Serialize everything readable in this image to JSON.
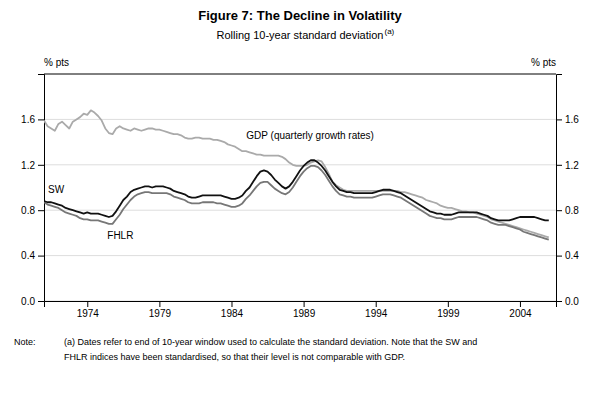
{
  "chart_data": {
    "type": "line",
    "title": "Figure 7: The Decline in Volatility",
    "subtitle": "Rolling 10-year standard deviation",
    "ylabel": "% pts",
    "y2label": "% pts",
    "annotations": [
      "(a)",
      "Note:",
      "(a) Dates refer to end of 10-year window used to calculate the standard deviation. Note that the SW and",
      "FHLR indices have been standardised, so that their level is not comparable with GDP."
    ],
    "xlim": [
      1971.0,
      2006.5
    ],
    "xticks": [
      1974,
      1979,
      1984,
      1989,
      1994,
      1999,
      2004
    ],
    "ylim": [
      0.0,
      2.0
    ],
    "yticks": [
      {
        "value": 0.0,
        "label": "0.0"
      },
      0.4,
      0.8,
      1.2,
      1.6
    ],
    "y2lim": [
      0.0,
      2.0
    ],
    "y2ticks": [
      {
        "value": 0.0,
        "label": "0.0"
      },
      0.4,
      0.8,
      1.2,
      1.6
    ],
    "grid": true,
    "x": [
      1971.0,
      1971.25,
      1971.5,
      1971.75,
      1972.0,
      1972.25,
      1972.5,
      1972.75,
      1973.0,
      1973.25,
      1973.5,
      1973.75,
      1974.0,
      1974.25,
      1974.5,
      1974.75,
      1975.0,
      1975.25,
      1975.5,
      1975.75,
      1976.0,
      1976.25,
      1976.5,
      1976.75,
      1977.0,
      1977.25,
      1977.5,
      1977.75,
      1978.0,
      1978.25,
      1978.5,
      1978.75,
      1979.0,
      1979.25,
      1979.5,
      1979.75,
      1980.0,
      1980.25,
      1980.5,
      1980.75,
      1981.0,
      1981.25,
      1981.5,
      1981.75,
      1982.0,
      1982.25,
      1982.5,
      1982.75,
      1983.0,
      1983.25,
      1983.5,
      1983.75,
      1984.0,
      1984.25,
      1984.5,
      1984.75,
      1985.0,
      1985.25,
      1985.5,
      1985.75,
      1986.0,
      1986.25,
      1986.5,
      1986.75,
      1987.0,
      1987.25,
      1987.5,
      1987.75,
      1988.0,
      1988.25,
      1988.5,
      1988.75,
      1989.0,
      1989.25,
      1989.5,
      1989.75,
      1990.0,
      1990.25,
      1990.5,
      1990.75,
      1991.0,
      1991.25,
      1991.5,
      1991.75,
      1992.0,
      1992.25,
      1992.5,
      1992.75,
      1993.0,
      1993.25,
      1993.5,
      1993.75,
      1994.0,
      1994.25,
      1994.5,
      1994.75,
      1995.0,
      1995.25,
      1995.5,
      1995.75,
      1996.0,
      1996.25,
      1996.5,
      1996.75,
      1997.0,
      1997.25,
      1997.5,
      1997.75,
      1998.0,
      1998.25,
      1998.5,
      1998.75,
      1999.0,
      1999.25,
      1999.5,
      1999.75,
      2000.0,
      2000.25,
      2000.5,
      2000.75,
      2001.0,
      2001.25,
      2001.5,
      2001.75,
      2002.0,
      2002.25,
      2002.5,
      2002.75,
      2003.0,
      2003.25,
      2003.5,
      2003.75,
      2004.0,
      2004.25,
      2004.5,
      2004.75,
      2005.0,
      2005.25,
      2005.5,
      2005.75,
      2006.0
    ],
    "series": [
      {
        "name": "GDP (quarterly growth rates)",
        "color": "#aaaaaa",
        "values": [
          1.59,
          1.54,
          1.52,
          1.5,
          1.56,
          1.58,
          1.55,
          1.52,
          1.58,
          1.6,
          1.62,
          1.65,
          1.64,
          1.68,
          1.66,
          1.63,
          1.59,
          1.52,
          1.48,
          1.47,
          1.52,
          1.54,
          1.52,
          1.51,
          1.5,
          1.52,
          1.51,
          1.5,
          1.51,
          1.52,
          1.52,
          1.51,
          1.51,
          1.5,
          1.49,
          1.48,
          1.47,
          1.47,
          1.46,
          1.44,
          1.43,
          1.43,
          1.44,
          1.44,
          1.43,
          1.43,
          1.43,
          1.42,
          1.42,
          1.41,
          1.4,
          1.38,
          1.37,
          1.36,
          1.34,
          1.32,
          1.32,
          1.31,
          1.3,
          1.29,
          1.29,
          1.28,
          1.28,
          1.28,
          1.28,
          1.28,
          1.27,
          1.25,
          1.22,
          1.2,
          1.19,
          1.19,
          1.19,
          1.2,
          1.22,
          1.23,
          1.24,
          1.23,
          1.18,
          1.12,
          1.05,
          1.02,
          1.0,
          0.98,
          0.97,
          0.97,
          0.97,
          0.97,
          0.97,
          0.97,
          0.97,
          0.97,
          0.97,
          0.97,
          0.97,
          0.97,
          0.97,
          0.97,
          0.97,
          0.96,
          0.96,
          0.95,
          0.94,
          0.93,
          0.92,
          0.91,
          0.89,
          0.88,
          0.87,
          0.86,
          0.84,
          0.83,
          0.82,
          0.82,
          0.81,
          0.8,
          0.79,
          0.79,
          0.78,
          0.78,
          0.77,
          0.76,
          0.75,
          0.74,
          0.72,
          0.71,
          0.7,
          0.69,
          0.68,
          0.67,
          0.66,
          0.65,
          0.64,
          0.63,
          0.62,
          0.61,
          0.6,
          0.59,
          0.58,
          0.57,
          0.56
        ]
      },
      {
        "name": "FHLR",
        "color": "#777777",
        "values": [
          0.87,
          0.85,
          0.84,
          0.83,
          0.82,
          0.8,
          0.78,
          0.77,
          0.76,
          0.75,
          0.73,
          0.72,
          0.72,
          0.71,
          0.71,
          0.71,
          0.7,
          0.69,
          0.68,
          0.68,
          0.72,
          0.76,
          0.81,
          0.85,
          0.89,
          0.92,
          0.94,
          0.95,
          0.96,
          0.96,
          0.95,
          0.95,
          0.95,
          0.95,
          0.95,
          0.94,
          0.92,
          0.91,
          0.9,
          0.89,
          0.87,
          0.86,
          0.86,
          0.86,
          0.87,
          0.87,
          0.87,
          0.87,
          0.86,
          0.86,
          0.85,
          0.84,
          0.83,
          0.83,
          0.84,
          0.86,
          0.9,
          0.93,
          0.97,
          1.01,
          1.04,
          1.05,
          1.05,
          1.02,
          0.99,
          0.97,
          0.95,
          0.94,
          0.96,
          1.0,
          1.05,
          1.1,
          1.14,
          1.17,
          1.19,
          1.19,
          1.18,
          1.15,
          1.11,
          1.06,
          1.01,
          0.97,
          0.94,
          0.93,
          0.92,
          0.92,
          0.91,
          0.91,
          0.91,
          0.91,
          0.91,
          0.91,
          0.92,
          0.93,
          0.94,
          0.94,
          0.94,
          0.93,
          0.92,
          0.91,
          0.89,
          0.87,
          0.85,
          0.83,
          0.81,
          0.79,
          0.77,
          0.75,
          0.74,
          0.73,
          0.73,
          0.72,
          0.72,
          0.72,
          0.73,
          0.74,
          0.74,
          0.74,
          0.74,
          0.74,
          0.74,
          0.73,
          0.72,
          0.71,
          0.69,
          0.68,
          0.67,
          0.67,
          0.67,
          0.66,
          0.65,
          0.64,
          0.63,
          0.61,
          0.6,
          0.59,
          0.58,
          0.57,
          0.56,
          0.55,
          0.54
        ]
      },
      {
        "name": "SW",
        "color": "#111111",
        "values": [
          0.88,
          0.87,
          0.87,
          0.86,
          0.85,
          0.84,
          0.82,
          0.81,
          0.8,
          0.79,
          0.78,
          0.77,
          0.78,
          0.77,
          0.77,
          0.77,
          0.76,
          0.75,
          0.74,
          0.75,
          0.79,
          0.84,
          0.89,
          0.92,
          0.96,
          0.98,
          0.99,
          1.0,
          1.01,
          1.01,
          1.0,
          1.01,
          1.01,
          1.01,
          1.0,
          0.99,
          0.97,
          0.96,
          0.95,
          0.94,
          0.92,
          0.91,
          0.91,
          0.92,
          0.93,
          0.93,
          0.93,
          0.93,
          0.93,
          0.93,
          0.92,
          0.91,
          0.9,
          0.9,
          0.91,
          0.93,
          0.97,
          1.0,
          1.05,
          1.1,
          1.14,
          1.15,
          1.14,
          1.11,
          1.07,
          1.04,
          1.01,
          0.99,
          1.01,
          1.05,
          1.1,
          1.15,
          1.19,
          1.22,
          1.24,
          1.24,
          1.22,
          1.19,
          1.15,
          1.1,
          1.05,
          1.01,
          0.98,
          0.97,
          0.96,
          0.96,
          0.95,
          0.95,
          0.95,
          0.95,
          0.95,
          0.95,
          0.96,
          0.97,
          0.98,
          0.98,
          0.98,
          0.97,
          0.96,
          0.95,
          0.93,
          0.91,
          0.89,
          0.87,
          0.85,
          0.83,
          0.81,
          0.79,
          0.78,
          0.77,
          0.77,
          0.76,
          0.76,
          0.76,
          0.77,
          0.78,
          0.78,
          0.78,
          0.78,
          0.78,
          0.78,
          0.77,
          0.76,
          0.75,
          0.73,
          0.72,
          0.71,
          0.71,
          0.71,
          0.71,
          0.72,
          0.73,
          0.74,
          0.74,
          0.74,
          0.74,
          0.74,
          0.73,
          0.72,
          0.71,
          0.71
        ]
      }
    ]
  }
}
